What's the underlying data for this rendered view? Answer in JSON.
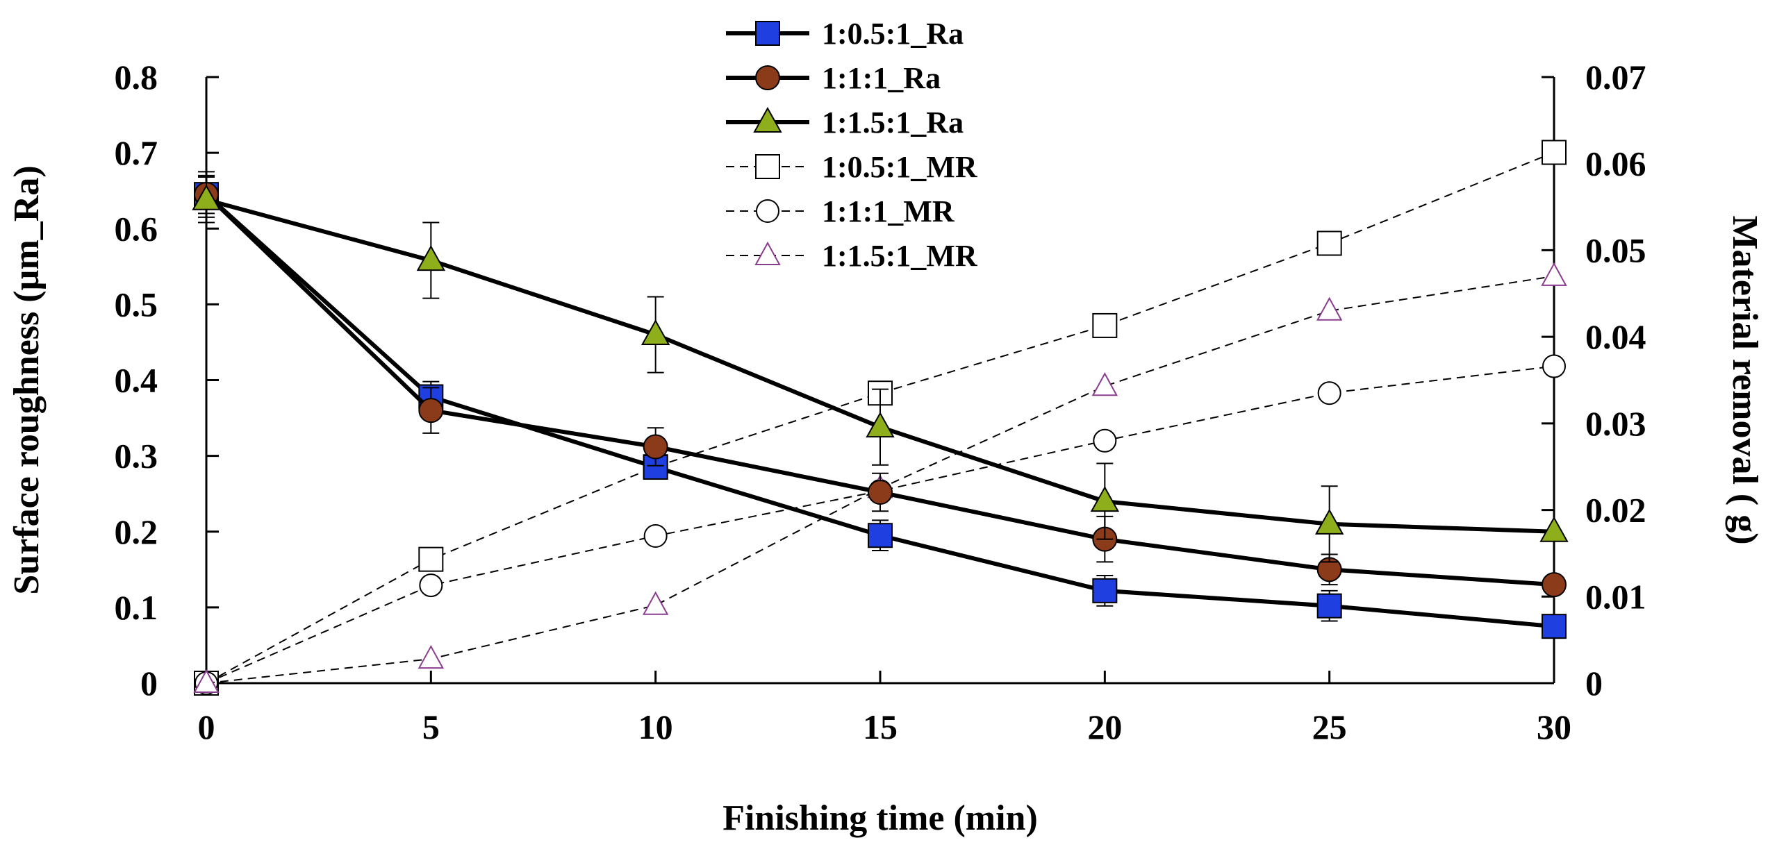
{
  "chart_data": {
    "type": "line",
    "title": "",
    "xlabel": "Finishing time (min)",
    "ylabel_left": "Surface roughness (µm_Ra)",
    "ylabel_right": "Material removal ( g)",
    "x": [
      0,
      5,
      10,
      15,
      20,
      25,
      30
    ],
    "x_ticks": [
      "0",
      "5",
      "10",
      "15",
      "20",
      "25",
      "30"
    ],
    "xlim": [
      0,
      30
    ],
    "ylim_left": [
      0,
      0.8
    ],
    "ylim_right": [
      0,
      0.07
    ],
    "y_ticks_left": [
      "0",
      "0.1",
      "0.2",
      "0.3",
      "0.4",
      "0.5",
      "0.6",
      "0.7",
      "0.8"
    ],
    "y_ticks_right": [
      "0",
      "0.01",
      "0.02",
      "0.03",
      "0.04",
      "0.05",
      "0.06",
      "0.07"
    ],
    "legend_position": "top-center",
    "series": [
      {
        "name": "1:0.5:1_Ra",
        "axis": "left",
        "style": "solid",
        "marker": "square",
        "fill": "#1f3fe0",
        "values": [
          0.645,
          0.378,
          0.285,
          0.195,
          0.122,
          0.102,
          0.075
        ],
        "errors": [
          0.025,
          0.02,
          0.015,
          0.02,
          0.02,
          0.02,
          0.0
        ]
      },
      {
        "name": "1:1:1_Ra",
        "axis": "left",
        "style": "solid",
        "marker": "circle",
        "fill": "#8b3a1a",
        "values": [
          0.645,
          0.36,
          0.312,
          0.252,
          0.19,
          0.15,
          0.13
        ],
        "errors": [
          0.03,
          0.03,
          0.025,
          0.025,
          0.03,
          0.02,
          0.0
        ]
      },
      {
        "name": "1:1.5:1_Ra",
        "axis": "left",
        "style": "solid",
        "marker": "triangle",
        "fill": "#8fae1b",
        "values": [
          0.638,
          0.558,
          0.46,
          0.338,
          0.24,
          0.21,
          0.2
        ],
        "errors": [
          0.03,
          0.05,
          0.05,
          0.05,
          0.05,
          0.05,
          0.0
        ]
      },
      {
        "name": "1:0.5:1_MR",
        "axis": "right",
        "style": "dashed",
        "marker": "square-open",
        "fill": "#ffffff",
        "values": [
          0.0,
          0.0143,
          0.025,
          0.0335,
          0.0413,
          0.0508,
          0.0613
        ]
      },
      {
        "name": "1:1:1_MR",
        "axis": "right",
        "style": "dashed",
        "marker": "circle-open",
        "fill": "#ffffff",
        "values": [
          0.0,
          0.0113,
          0.017,
          0.0222,
          0.028,
          0.0335,
          0.0366
        ]
      },
      {
        "name": "1:1.5:1_MR",
        "axis": "right",
        "style": "dashed",
        "marker": "triangle-open",
        "fill": "#ffffff",
        "values": [
          0.0,
          0.0028,
          0.009,
          0.0225,
          0.0343,
          0.043,
          0.047
        ]
      }
    ]
  }
}
